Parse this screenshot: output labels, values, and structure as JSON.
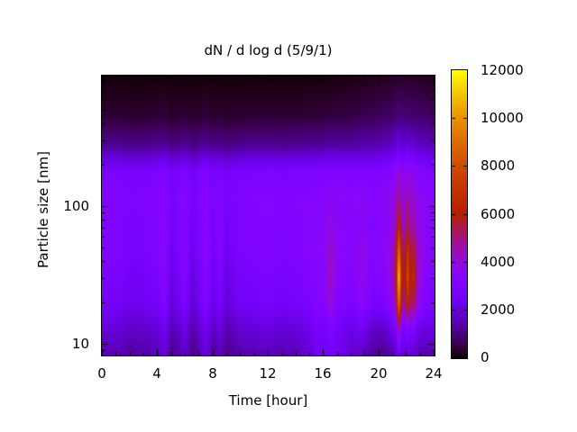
{
  "title": "dN / d log d (5/9/1)",
  "x_axis": {
    "label": "Time [hour]",
    "range": [
      0,
      24
    ],
    "major_ticks": [
      0,
      4,
      8,
      12,
      16,
      20,
      24
    ],
    "minor_ticks": [
      1,
      2,
      3,
      5,
      6,
      7,
      9,
      10,
      11,
      13,
      14,
      15,
      17,
      18,
      19,
      21,
      22,
      23
    ]
  },
  "y_axis": {
    "label": "Particle size [nm]",
    "scale": "log",
    "range": [
      8.4,
      885
    ],
    "major_ticks": [
      10,
      100
    ],
    "minor_ticks": [
      9,
      20,
      30,
      40,
      50,
      60,
      70,
      80,
      90,
      200,
      300,
      400,
      500,
      600,
      700,
      800
    ]
  },
  "colorbar": {
    "range": [
      0,
      12000
    ],
    "tick_values": [
      2000,
      4000,
      6000,
      8000,
      10000
    ],
    "labels": [
      "0",
      "2000",
      "4000",
      "6000",
      "8000",
      "10000",
      "12000"
    ],
    "palette": "gnuplot default pm3d (black-purple-magenta-orange-yellow)",
    "black": "#000000",
    "yellow": "#ffff00"
  },
  "chart_data": {
    "type": "heatmap",
    "title": "dN / d log d (5/9/1)",
    "xlabel": "Time [hour]",
    "ylabel": "Particle size [nm]",
    "value_min": 0,
    "value_max": 12000,
    "y_scale": "log",
    "x_hours": [
      0,
      1,
      2,
      3,
      4,
      4.5,
      5,
      5.5,
      6,
      6.5,
      7,
      7.5,
      8,
      8.5,
      9,
      10,
      11,
      12,
      13,
      14,
      15,
      15.5,
      16,
      16.5,
      17,
      18,
      18.8,
      19.5,
      20.3,
      21,
      21.25,
      21.45,
      21.65,
      21.9,
      22.1,
      22.3,
      22.5,
      22.75,
      23.2,
      24
    ],
    "y_sizes_nm": [
      8.5,
      13,
      20,
      31,
      48,
      75,
      115,
      180,
      280,
      450,
      880
    ],
    "values": [
      [
        1450,
        1500,
        1300,
        1350,
        1500,
        2000,
        1100,
        1400,
        1750,
        1050,
        1400,
        2050,
        1200,
        1650,
        1100,
        1400,
        1500,
        1600,
        1450,
        1500,
        1900,
        2400,
        2400,
        2500,
        2400,
        1900,
        1700,
        1250,
        1150,
        1500,
        1800,
        2600,
        1900,
        1800,
        2000,
        1800,
        1900,
        1600,
        1450,
        1550
      ],
      [
        1900,
        2000,
        1700,
        1780,
        2000,
        2400,
        1450,
        1780,
        2250,
        1380,
        1780,
        2450,
        1600,
        2100,
        1450,
        1870,
        1950,
        2100,
        1900,
        2000,
        2250,
        2750,
        2500,
        2900,
        2600,
        2100,
        2450,
        1800,
        1700,
        2350,
        2850,
        4800,
        3000,
        2800,
        3250,
        2800,
        3000,
        2350,
        2100,
        2100
      ],
      [
        2500,
        2600,
        2300,
        2400,
        2600,
        3100,
        1950,
        2400,
        2950,
        1850,
        2400,
        3100,
        2200,
        2700,
        1950,
        2500,
        2550,
        2700,
        2500,
        2600,
        2900,
        3250,
        3100,
        4100,
        3100,
        2800,
        3500,
        2700,
        2850,
        3600,
        5100,
        9300,
        5400,
        4800,
        6700,
        4700,
        5800,
        4100,
        3200,
        2800
      ],
      [
        2700,
        2800,
        2450,
        2550,
        2800,
        3300,
        2100,
        2550,
        3150,
        2000,
        2550,
        3350,
        2350,
        2900,
        2100,
        2650,
        2750,
        2900,
        2700,
        2800,
        3100,
        3300,
        3200,
        4500,
        3400,
        3050,
        3850,
        2950,
        3250,
        4150,
        6000,
        11300,
        6400,
        5600,
        8100,
        5600,
        6800,
        4600,
        3500,
        2950
      ],
      [
        2950,
        3050,
        2700,
        2800,
        3050,
        3450,
        2350,
        2800,
        3350,
        2250,
        2800,
        3500,
        2600,
        3150,
        2350,
        2900,
        3000,
        3150,
        2950,
        3050,
        3250,
        3350,
        3350,
        4300,
        3550,
        3250,
        3850,
        3150,
        3400,
        4150,
        5500,
        9100,
        5700,
        5200,
        7200,
        5100,
        6000,
        4400,
        3600,
        3150
      ],
      [
        2950,
        3050,
        2750,
        2850,
        3050,
        3350,
        2500,
        2850,
        3300,
        2450,
        2850,
        3400,
        2650,
        3150,
        2500,
        2950,
        3050,
        3150,
        3000,
        3050,
        3200,
        3250,
        3300,
        3800,
        3400,
        3200,
        3500,
        3100,
        3300,
        3800,
        4550,
        6400,
        4700,
        4400,
        5450,
        4300,
        4750,
        3900,
        3500,
        3150
      ],
      [
        3050,
        3150,
        2900,
        3000,
        3150,
        3400,
        2750,
        3000,
        3350,
        2700,
        3000,
        3450,
        2850,
        3200,
        2750,
        3050,
        3150,
        3200,
        3100,
        3150,
        3250,
        3300,
        3350,
        3650,
        3450,
        3300,
        3500,
        3250,
        3400,
        3800,
        4350,
        4900,
        4200,
        4100,
        4800,
        4000,
        4300,
        3800,
        3550,
        3250
      ],
      [
        2750,
        2850,
        2650,
        2700,
        2850,
        3000,
        2550,
        2700,
        2950,
        2500,
        2700,
        3050,
        2600,
        2850,
        2550,
        2750,
        2800,
        2850,
        2800,
        2850,
        2900,
        2900,
        2950,
        3100,
        3000,
        2950,
        3050,
        2900,
        3000,
        3250,
        3550,
        4100,
        3500,
        3450,
        3850,
        3400,
        3550,
        3250,
        3100,
        2950
      ],
      [
        1150,
        1180,
        1080,
        1100,
        1180,
        1250,
        1020,
        1100,
        1220,
        1000,
        1100,
        1280,
        1050,
        1180,
        1020,
        1150,
        1180,
        1180,
        1150,
        1180,
        1220,
        1220,
        1250,
        1350,
        1300,
        1300,
        1420,
        1420,
        1520,
        1680,
        1850,
        2150,
        1880,
        1850,
        2000,
        1820,
        1850,
        1720,
        1620,
        1520
      ],
      [
        380,
        400,
        350,
        360,
        400,
        430,
        320,
        360,
        420,
        310,
        360,
        440,
        330,
        400,
        320,
        380,
        400,
        400,
        380,
        400,
        420,
        420,
        450,
        500,
        490,
        520,
        610,
        660,
        730,
        820,
        900,
        1080,
        920,
        900,
        970,
        890,
        890,
        850,
        810,
        760
      ],
      [
        60,
        70,
        50,
        55,
        70,
        80,
        42,
        55,
        75,
        40,
        55,
        82,
        48,
        70,
        42,
        60,
        70,
        70,
        60,
        70,
        75,
        75,
        85,
        100,
        100,
        120,
        150,
        185,
        215,
        245,
        275,
        335,
        285,
        275,
        305,
        275,
        275,
        258,
        242,
        225
      ]
    ]
  }
}
